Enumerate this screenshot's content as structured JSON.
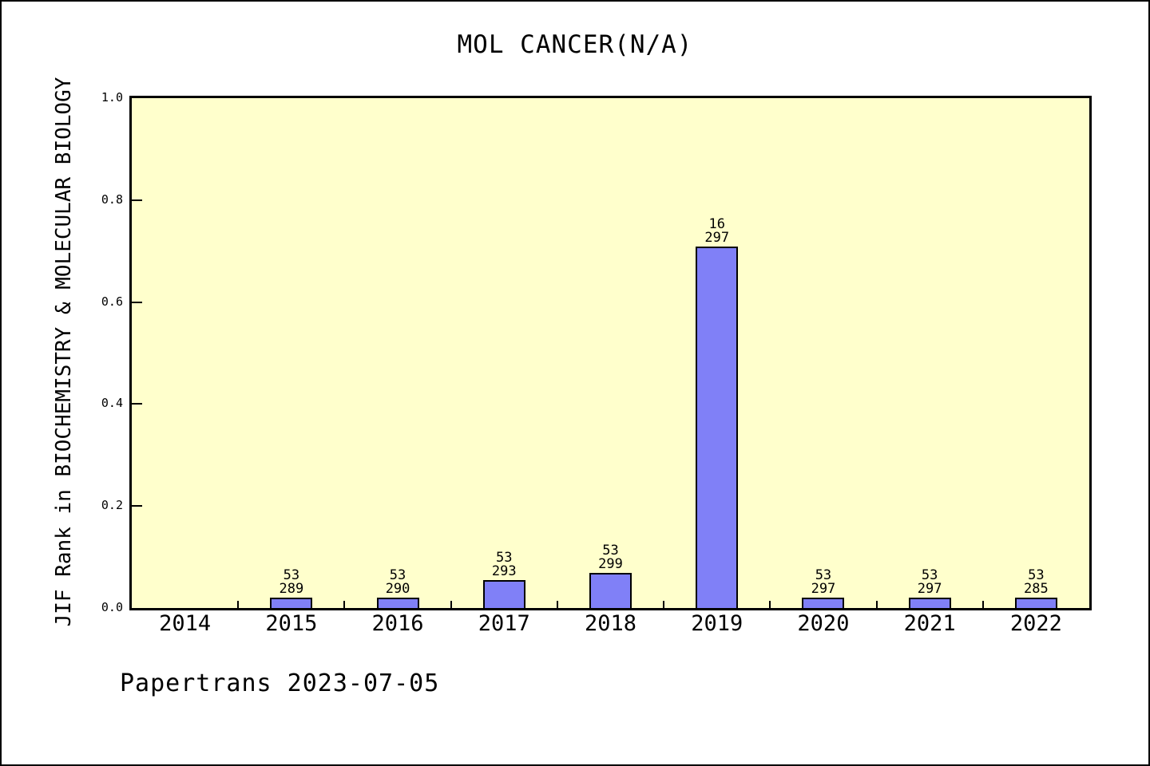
{
  "footer": {
    "text": "Papertrans 2023-07-05"
  },
  "colors": {
    "bar_fill": "#8080F7",
    "bar_edge": "#000000",
    "plot_background": "#FFFFCC",
    "page_background": "#FFFFFF",
    "axis": "#000000",
    "text": "#000000"
  },
  "chart_data": {
    "type": "bar",
    "title": "MOL CANCER(N/A)",
    "xlabel": "",
    "ylabel": "JIF Rank in BIOCHEMISTRY & MOLECULAR BIOLOGY",
    "categories": [
      "2014",
      "2015",
      "2016",
      "2017",
      "2018",
      "2019",
      "2020",
      "2021",
      "2022"
    ],
    "values": [
      0,
      0.02,
      0.02,
      0.054,
      0.069,
      0.709,
      0.02,
      0.02,
      0.02
    ],
    "bar_labels": [
      null,
      [
        "53",
        "289"
      ],
      [
        "53",
        "290"
      ],
      [
        "53",
        "293"
      ],
      [
        "53",
        "299"
      ],
      [
        "16",
        "297"
      ],
      [
        "53",
        "297"
      ],
      [
        "53",
        "297"
      ],
      [
        "53",
        "285"
      ]
    ],
    "ytick_labels": [
      "0.0",
      "0.2",
      "0.4",
      "0.6",
      "0.8",
      "1.0"
    ],
    "ylim": [
      0,
      1
    ],
    "grid": false,
    "legend": null,
    "bar_width_fraction": 0.4
  }
}
